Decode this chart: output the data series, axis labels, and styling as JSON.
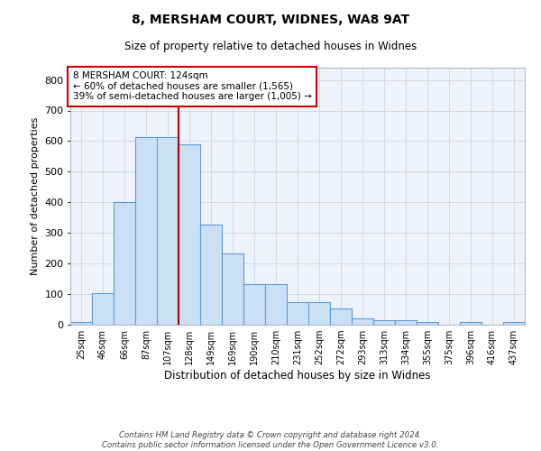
{
  "title": "8, MERSHAM COURT, WIDNES, WA8 9AT",
  "subtitle": "Size of property relative to detached houses in Widnes",
  "xlabel": "Distribution of detached houses by size in Widnes",
  "ylabel": "Number of detached properties",
  "bar_color": "#cce0f5",
  "bar_edge_color": "#5b9bd5",
  "background_color": "#eef2fb",
  "grid_color": "#d0d8ea",
  "categories": [
    "25sqm",
    "46sqm",
    "66sqm",
    "87sqm",
    "107sqm",
    "128sqm",
    "149sqm",
    "169sqm",
    "190sqm",
    "210sqm",
    "231sqm",
    "252sqm",
    "272sqm",
    "293sqm",
    "313sqm",
    "334sqm",
    "355sqm",
    "375sqm",
    "396sqm",
    "416sqm",
    "437sqm"
  ],
  "values": [
    8,
    104,
    400,
    614,
    614,
    590,
    328,
    234,
    134,
    134,
    75,
    75,
    52,
    22,
    14,
    14,
    9,
    0,
    9,
    0,
    9
  ],
  "vline_x": 4.5,
  "vline_color": "#aa0000",
  "annotation_text": "8 MERSHAM COURT: 124sqm\n← 60% of detached houses are smaller (1,565)\n39% of semi-detached houses are larger (1,005) →",
  "annotation_box_color": "#ffffff",
  "annotation_box_edge": "#cc0000",
  "footer_text": "Contains HM Land Registry data © Crown copyright and database right 2024.\nContains public sector information licensed under the Open Government Licence v3.0.",
  "ylim": [
    0,
    840
  ],
  "yticks": [
    0,
    100,
    200,
    300,
    400,
    500,
    600,
    700,
    800
  ]
}
